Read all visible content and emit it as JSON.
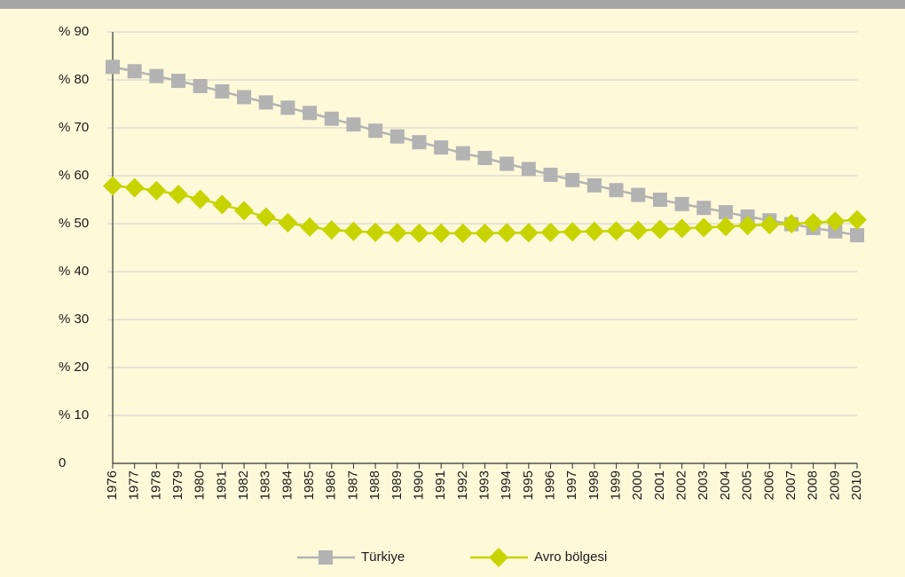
{
  "chart_data": {
    "type": "line",
    "categories": [
      "1976",
      "1977",
      "1978",
      "1979",
      "1980",
      "1981",
      "1982",
      "1983",
      "1984",
      "1985",
      "1986",
      "1987",
      "1988",
      "1989",
      "1990",
      "1991",
      "1992",
      "1993",
      "1994",
      "1995",
      "1996",
      "1997",
      "1998",
      "1999",
      "2000",
      "2001",
      "2002",
      "2003",
      "2004",
      "2005",
      "2006",
      "2007",
      "2008",
      "2009",
      "2010"
    ],
    "series": [
      {
        "name": "Türkiye",
        "color": "#b3b3b3",
        "marker": "square",
        "values": [
          82.7,
          81.8,
          80.8,
          79.8,
          78.7,
          77.6,
          76.4,
          75.3,
          74.2,
          73.1,
          71.9,
          70.7,
          69.4,
          68.2,
          67.0,
          65.9,
          64.7,
          63.7,
          62.5,
          61.4,
          60.2,
          59.1,
          58.0,
          57.0,
          56.0,
          55.0,
          54.1,
          53.3,
          52.4,
          51.5,
          50.7,
          49.9,
          49.1,
          48.4,
          47.6
        ]
      },
      {
        "name": "Avro bölgesi",
        "color": "#c8d400",
        "marker": "diamond",
        "values": [
          57.9,
          57.5,
          56.9,
          56.1,
          55.1,
          54.0,
          52.7,
          51.4,
          50.2,
          49.3,
          48.7,
          48.4,
          48.2,
          48.1,
          48.0,
          48.0,
          48.0,
          48.0,
          48.1,
          48.1,
          48.2,
          48.3,
          48.4,
          48.5,
          48.6,
          48.8,
          49.0,
          49.2,
          49.4,
          49.6,
          49.8,
          50.0,
          50.2,
          50.5,
          50.8
        ]
      }
    ],
    "ylim": [
      0,
      90
    ],
    "yticks": [
      0,
      {
        "value": 10,
        "label": "% 10"
      },
      {
        "value": 20,
        "label": "% 20"
      },
      {
        "value": 30,
        "label": "% 30"
      },
      {
        "value": 40,
        "label": "% 40"
      },
      {
        "value": 50,
        "label": "% 50"
      },
      {
        "value": 60,
        "label": "% 60"
      },
      {
        "value": 70,
        "label": "% 70"
      },
      {
        "value": 80,
        "label": "% 80"
      },
      {
        "value": 90,
        "label": "% 90"
      }
    ],
    "grid": true,
    "legend": "bottom"
  }
}
